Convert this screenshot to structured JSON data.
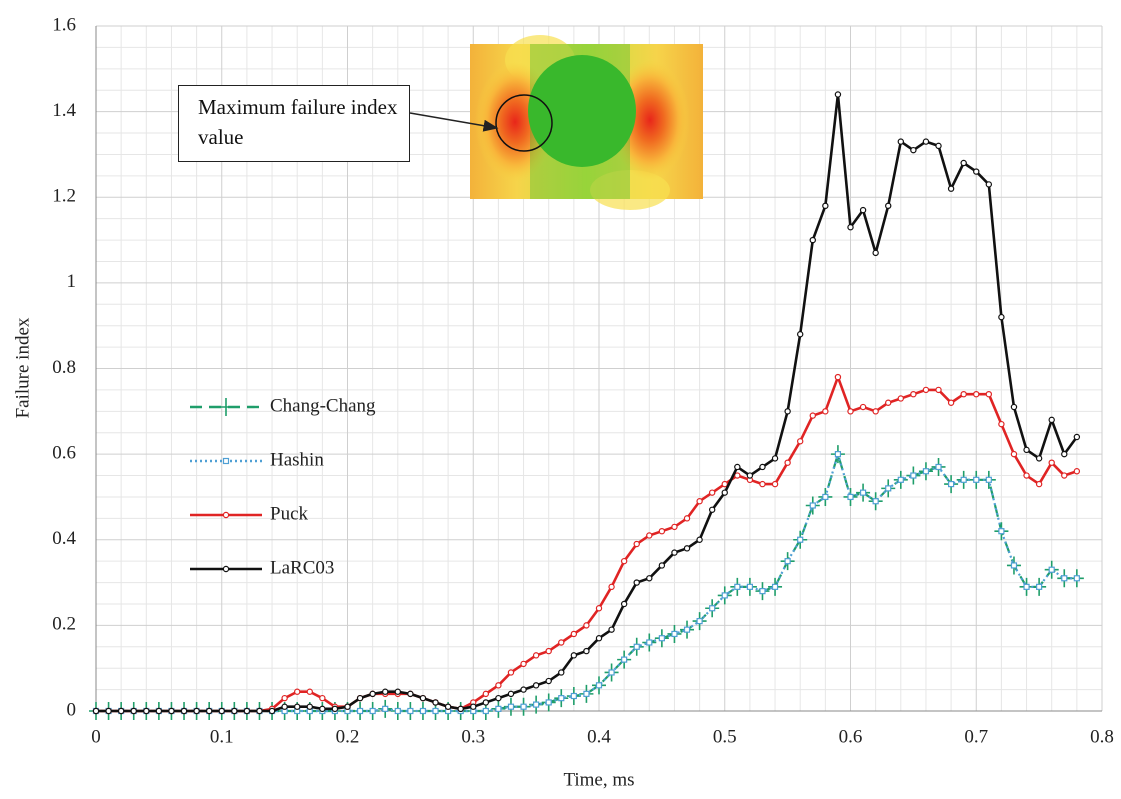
{
  "chart_data": {
    "type": "line",
    "x_label": "Time, ms",
    "y_label": "Failure index",
    "annotation": "Maximum failure index value",
    "xlim": [
      0,
      0.8
    ],
    "xticks": [
      0,
      0.1,
      0.2,
      0.3,
      0.4,
      0.5,
      0.6,
      0.7,
      0.8
    ],
    "ylim": [
      0,
      1.6
    ],
    "yticks": [
      0,
      0.2,
      0.4,
      0.6,
      0.8,
      1,
      1.2,
      1.4,
      1.6
    ],
    "grid": true,
    "legend": "left",
    "x": [
      0,
      0.01,
      0.02,
      0.03,
      0.04,
      0.05,
      0.06,
      0.07,
      0.08,
      0.09,
      0.1,
      0.11,
      0.12,
      0.13,
      0.14,
      0.15,
      0.16,
      0.17,
      0.18,
      0.19,
      0.2,
      0.21,
      0.22,
      0.23,
      0.24,
      0.25,
      0.26,
      0.27,
      0.28,
      0.29,
      0.3,
      0.31,
      0.32,
      0.33,
      0.34,
      0.35,
      0.36,
      0.37,
      0.38,
      0.39,
      0.4,
      0.41,
      0.42,
      0.43,
      0.44,
      0.45,
      0.46,
      0.47,
      0.48,
      0.49,
      0.5,
      0.51,
      0.52,
      0.53,
      0.54,
      0.55,
      0.56,
      0.57,
      0.58,
      0.59,
      0.6,
      0.61,
      0.62,
      0.63,
      0.64,
      0.65,
      0.66,
      0.67,
      0.68,
      0.69,
      0.7,
      0.71,
      0.72,
      0.73,
      0.74,
      0.75,
      0.76,
      0.77,
      0.78
    ],
    "series": [
      {
        "name": "Chang-Chang",
        "color": "#1f9e6a",
        "style": "dashed",
        "marker": "plus",
        "values": [
          0,
          0,
          0,
          0,
          0,
          0,
          0,
          0,
          0,
          0,
          0,
          0,
          0,
          0,
          0,
          0,
          0,
          0,
          0,
          0,
          0,
          0,
          0,
          0.005,
          0,
          0,
          0,
          0,
          0,
          0,
          0,
          0,
          0.005,
          0.01,
          0.01,
          0.015,
          0.02,
          0.03,
          0.035,
          0.04,
          0.06,
          0.09,
          0.12,
          0.15,
          0.16,
          0.17,
          0.18,
          0.19,
          0.21,
          0.24,
          0.27,
          0.29,
          0.29,
          0.28,
          0.29,
          0.35,
          0.4,
          0.48,
          0.5,
          0.6,
          0.5,
          0.51,
          0.49,
          0.52,
          0.54,
          0.55,
          0.56,
          0.57,
          0.53,
          0.54,
          0.54,
          0.54,
          0.42,
          0.34,
          0.29,
          0.29,
          0.33,
          0.31,
          0.31
        ]
      },
      {
        "name": "Hashin",
        "color": "#4f9fd4",
        "style": "dotted",
        "marker": "square",
        "values": [
          0,
          0,
          0,
          0,
          0,
          0,
          0,
          0,
          0,
          0,
          0,
          0,
          0,
          0,
          0,
          0,
          0,
          0,
          0,
          0,
          0,
          0,
          0,
          0.005,
          0,
          0,
          0,
          0,
          0,
          0,
          0,
          0,
          0.005,
          0.01,
          0.01,
          0.015,
          0.02,
          0.03,
          0.035,
          0.04,
          0.06,
          0.09,
          0.12,
          0.15,
          0.16,
          0.17,
          0.18,
          0.19,
          0.21,
          0.24,
          0.27,
          0.29,
          0.29,
          0.28,
          0.29,
          0.35,
          0.4,
          0.48,
          0.5,
          0.6,
          0.5,
          0.51,
          0.49,
          0.52,
          0.54,
          0.55,
          0.56,
          0.57,
          0.53,
          0.54,
          0.54,
          0.54,
          0.42,
          0.34,
          0.29,
          0.29,
          0.33,
          0.31,
          0.31
        ]
      },
      {
        "name": "Puck",
        "color": "#e02424",
        "style": "solid",
        "marker": "circle",
        "values": [
          0,
          0,
          0,
          0,
          0,
          0,
          0,
          0,
          0,
          0,
          0,
          0,
          0,
          0,
          0.005,
          0.03,
          0.045,
          0.045,
          0.03,
          0.01,
          0.01,
          0.03,
          0.04,
          0.04,
          0.04,
          0.04,
          0.03,
          0.02,
          0.01,
          0.005,
          0.02,
          0.04,
          0.06,
          0.09,
          0.11,
          0.13,
          0.14,
          0.16,
          0.18,
          0.2,
          0.24,
          0.29,
          0.35,
          0.39,
          0.41,
          0.42,
          0.43,
          0.45,
          0.49,
          0.51,
          0.53,
          0.55,
          0.54,
          0.53,
          0.53,
          0.58,
          0.63,
          0.69,
          0.7,
          0.78,
          0.7,
          0.71,
          0.7,
          0.72,
          0.73,
          0.74,
          0.75,
          0.75,
          0.72,
          0.74,
          0.74,
          0.74,
          0.67,
          0.6,
          0.55,
          0.53,
          0.58,
          0.55,
          0.56
        ]
      },
      {
        "name": "LaRC03",
        "color": "#111111",
        "style": "solid",
        "marker": "circle",
        "values": [
          0,
          0,
          0,
          0,
          0,
          0,
          0,
          0,
          0,
          0,
          0,
          0,
          0,
          0,
          0,
          0.01,
          0.01,
          0.01,
          0.005,
          0.005,
          0.01,
          0.03,
          0.04,
          0.045,
          0.045,
          0.04,
          0.03,
          0.02,
          0.01,
          0.005,
          0.01,
          0.02,
          0.03,
          0.04,
          0.05,
          0.06,
          0.07,
          0.09,
          0.13,
          0.14,
          0.17,
          0.19,
          0.25,
          0.3,
          0.31,
          0.34,
          0.37,
          0.38,
          0.4,
          0.47,
          0.51,
          0.57,
          0.55,
          0.57,
          0.59,
          0.7,
          0.88,
          1.1,
          1.18,
          1.44,
          1.13,
          1.17,
          1.07,
          1.18,
          1.33,
          1.31,
          1.33,
          1.32,
          1.22,
          1.28,
          1.26,
          1.23,
          0.92,
          0.71,
          0.61,
          0.59,
          0.68,
          0.6,
          0.64
        ]
      }
    ]
  }
}
